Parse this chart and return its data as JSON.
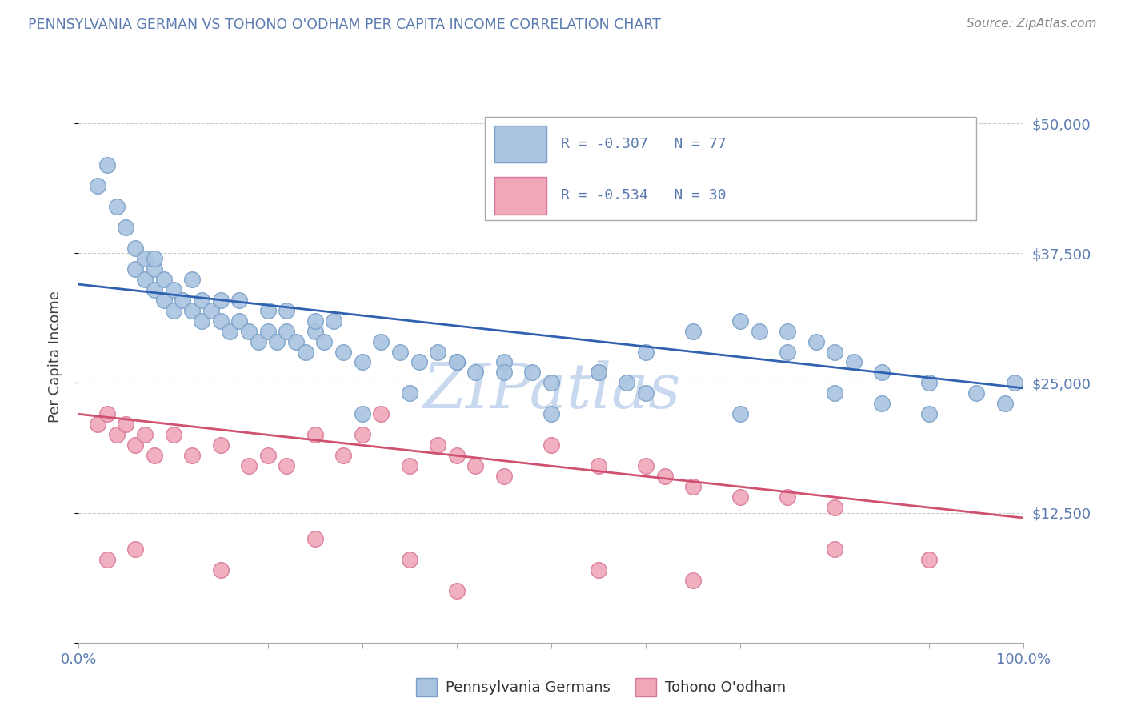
{
  "title": "PENNSYLVANIA GERMAN VS TOHONO O'ODHAM PER CAPITA INCOME CORRELATION CHART",
  "source_text": "Source: ZipAtlas.com",
  "ylabel": "Per Capita Income",
  "xlim": [
    0.0,
    100.0
  ],
  "ylim": [
    0,
    55000
  ],
  "yticks": [
    0,
    12500,
    25000,
    37500,
    50000
  ],
  "ytick_labels": [
    "",
    "$12,500",
    "$25,000",
    "$37,500",
    "$50,000"
  ],
  "blue_color": "#aac4e0",
  "blue_edge": "#7aa0c8",
  "pink_color": "#f0a8b8",
  "pink_edge": "#d87898",
  "blue_line_color": "#3060b0",
  "pink_line_color": "#d05070",
  "legend_text1": "R = -0.307   N = 77",
  "legend_text2": "R = -0.534   N = 30",
  "label1": "Pennsylvania Germans",
  "label2": "Tohono O'odham",
  "watermark": "ZIPatlas",
  "watermark_color": "#c8d8ee",
  "title_color": "#5a7ab0",
  "axis_label_color": "#404040",
  "tick_color": "#5a7ab0",
  "grid_color": "#cccccc",
  "background_color": "#ffffff",
  "blue_line_x0": 0,
  "blue_line_x1": 100,
  "blue_line_y0": 34500,
  "blue_line_y1": 24500,
  "pink_line_x0": 0,
  "pink_line_x1": 100,
  "pink_line_y0": 22000,
  "pink_line_y1": 12000,
  "blue_x": [
    2,
    3,
    4,
    5,
    6,
    6,
    7,
    7,
    8,
    8,
    9,
    9,
    10,
    10,
    11,
    12,
    13,
    13,
    14,
    15,
    16,
    17,
    18,
    19,
    20,
    21,
    22,
    23,
    24,
    25,
    26,
    28,
    30,
    32,
    34,
    36,
    38,
    40,
    42,
    45,
    48,
    50,
    55,
    58,
    60,
    65,
    70,
    72,
    75,
    78,
    80,
    82,
    85,
    90,
    95,
    98,
    99,
    30,
    35,
    50,
    60,
    70,
    80,
    85,
    90,
    55,
    40,
    45,
    75,
    20,
    25,
    15,
    8,
    12,
    17,
    22,
    27
  ],
  "blue_y": [
    44000,
    46000,
    42000,
    40000,
    38000,
    36000,
    35000,
    37000,
    36000,
    34000,
    35000,
    33000,
    34000,
    32000,
    33000,
    32000,
    31000,
    33000,
    32000,
    31000,
    30000,
    31000,
    30000,
    29000,
    30000,
    29000,
    30000,
    29000,
    28000,
    30000,
    29000,
    28000,
    27000,
    29000,
    28000,
    27000,
    28000,
    27000,
    26000,
    27000,
    26000,
    25000,
    26000,
    25000,
    28000,
    30000,
    31000,
    30000,
    30000,
    29000,
    28000,
    27000,
    26000,
    25000,
    24000,
    23000,
    25000,
    22000,
    24000,
    22000,
    24000,
    22000,
    24000,
    23000,
    22000,
    26000,
    27000,
    26000,
    28000,
    32000,
    31000,
    33000,
    37000,
    35000,
    33000,
    32000,
    31000
  ],
  "pink_x": [
    2,
    3,
    4,
    5,
    6,
    7,
    8,
    10,
    12,
    15,
    18,
    20,
    22,
    25,
    28,
    30,
    32,
    35,
    38,
    40,
    42,
    45,
    50,
    55,
    60,
    62,
    65,
    70,
    75,
    80
  ],
  "pink_y": [
    21000,
    22000,
    20000,
    21000,
    19000,
    20000,
    18000,
    20000,
    18000,
    19000,
    17000,
    18000,
    17000,
    20000,
    18000,
    20000,
    22000,
    17000,
    19000,
    18000,
    17000,
    16000,
    19000,
    17000,
    17000,
    16000,
    15000,
    14000,
    14000,
    13000
  ],
  "pink_low_x": [
    3,
    6,
    15,
    25,
    35,
    40,
    55,
    65,
    80,
    90
  ],
  "pink_low_y": [
    8000,
    9000,
    7000,
    10000,
    8000,
    5000,
    7000,
    6000,
    9000,
    8000
  ]
}
